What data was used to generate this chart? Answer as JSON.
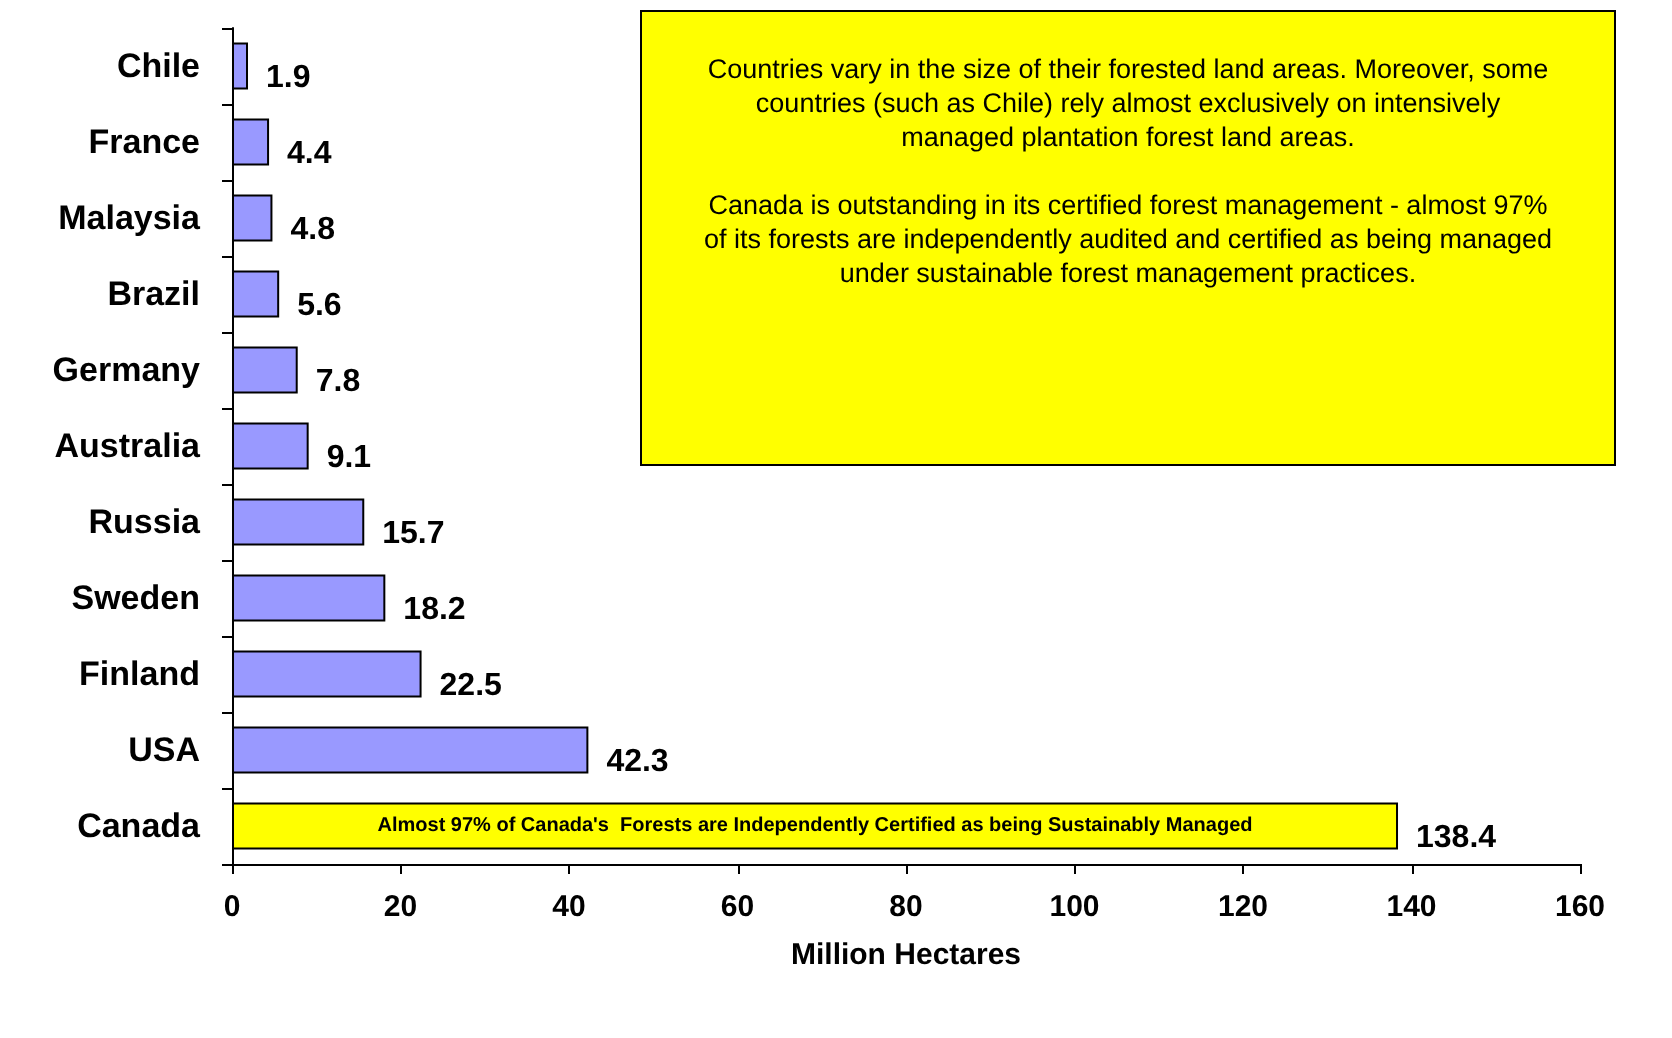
{
  "chart_data": {
    "type": "bar",
    "orientation": "horizontal",
    "categories": [
      "Chile",
      "France",
      "Malaysia",
      "Brazil",
      "Germany",
      "Australia",
      "Russia",
      "Sweden",
      "Finland",
      "USA",
      "Canada"
    ],
    "values": [
      1.9,
      4.4,
      4.8,
      5.6,
      7.8,
      9.1,
      15.7,
      18.2,
      22.5,
      42.3,
      138.4
    ],
    "colors": [
      "#9999ff",
      "#9999ff",
      "#9999ff",
      "#9999ff",
      "#9999ff",
      "#9999ff",
      "#9999ff",
      "#9999ff",
      "#9999ff",
      "#9999ff",
      "#ffff00"
    ],
    "xlim": [
      0,
      160
    ],
    "xticks": [
      0,
      20,
      40,
      60,
      80,
      100,
      120,
      140,
      160
    ],
    "xlabel": "Million Hectares",
    "data_labels": true,
    "grid": false,
    "annotations": [
      "Countries vary in the size of their forested land areas. Moreover, some countries (such as Chile) rely almost exclusively on intensively managed plantation forest land areas.",
      "Canada is outstanding in its certified forest management - almost 97% of its forests are independently audited and certified as being managed under sustainable forest management practices.",
      {
        "text": "Almost 97% of Canada's  Forests are Independently Certified as being Sustainably Managed",
        "y": "Canada"
      }
    ]
  }
}
